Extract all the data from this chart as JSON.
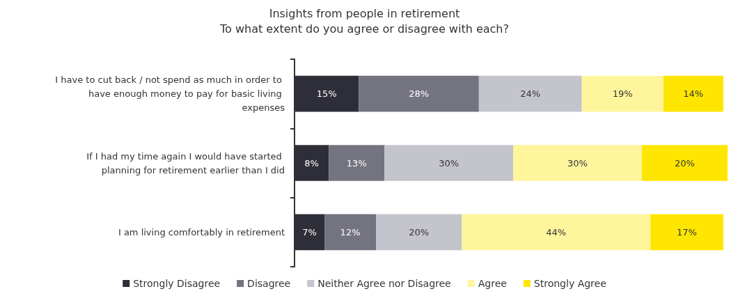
{
  "chart_data": {
    "type": "bar",
    "orientation": "horizontal",
    "stacked": true,
    "title": "Insights from people in retirement",
    "subtitle": "To what extent do you agree or disagree with each?",
    "categories": [
      "I have to cut back / not spend as much in order to have enough money to pay for basic living expenses",
      "If I had my time again I would have started planning for retirement earlier than I did",
      "I am living comfortably in retirement"
    ],
    "series": [
      {
        "name": "Strongly Disagree",
        "color": "#2e2e38",
        "values": [
          15,
          8,
          7
        ],
        "value_labels": [
          "15%",
          "8%",
          "7%"
        ]
      },
      {
        "name": "Disagree",
        "color": "#747480",
        "values": [
          28,
          13,
          12
        ],
        "value_labels": [
          "28%",
          "13%",
          "12%"
        ]
      },
      {
        "name": "Neither Agree nor Disagree",
        "color": "#c4c4cd",
        "values": [
          24,
          30,
          20
        ],
        "value_labels": [
          "24%",
          "30%",
          "20%"
        ]
      },
      {
        "name": "Agree",
        "color": "#fff59d",
        "values": [
          19,
          30,
          44
        ],
        "value_labels": [
          "19%",
          "30%",
          "44%"
        ]
      },
      {
        "name": "Strongly Agree",
        "color": "#ffe600",
        "values": [
          14,
          20,
          17
        ],
        "value_labels": [
          "14%",
          "20%",
          "17%"
        ]
      }
    ],
    "tick_labels": "y",
    "legend": "bottom"
  }
}
